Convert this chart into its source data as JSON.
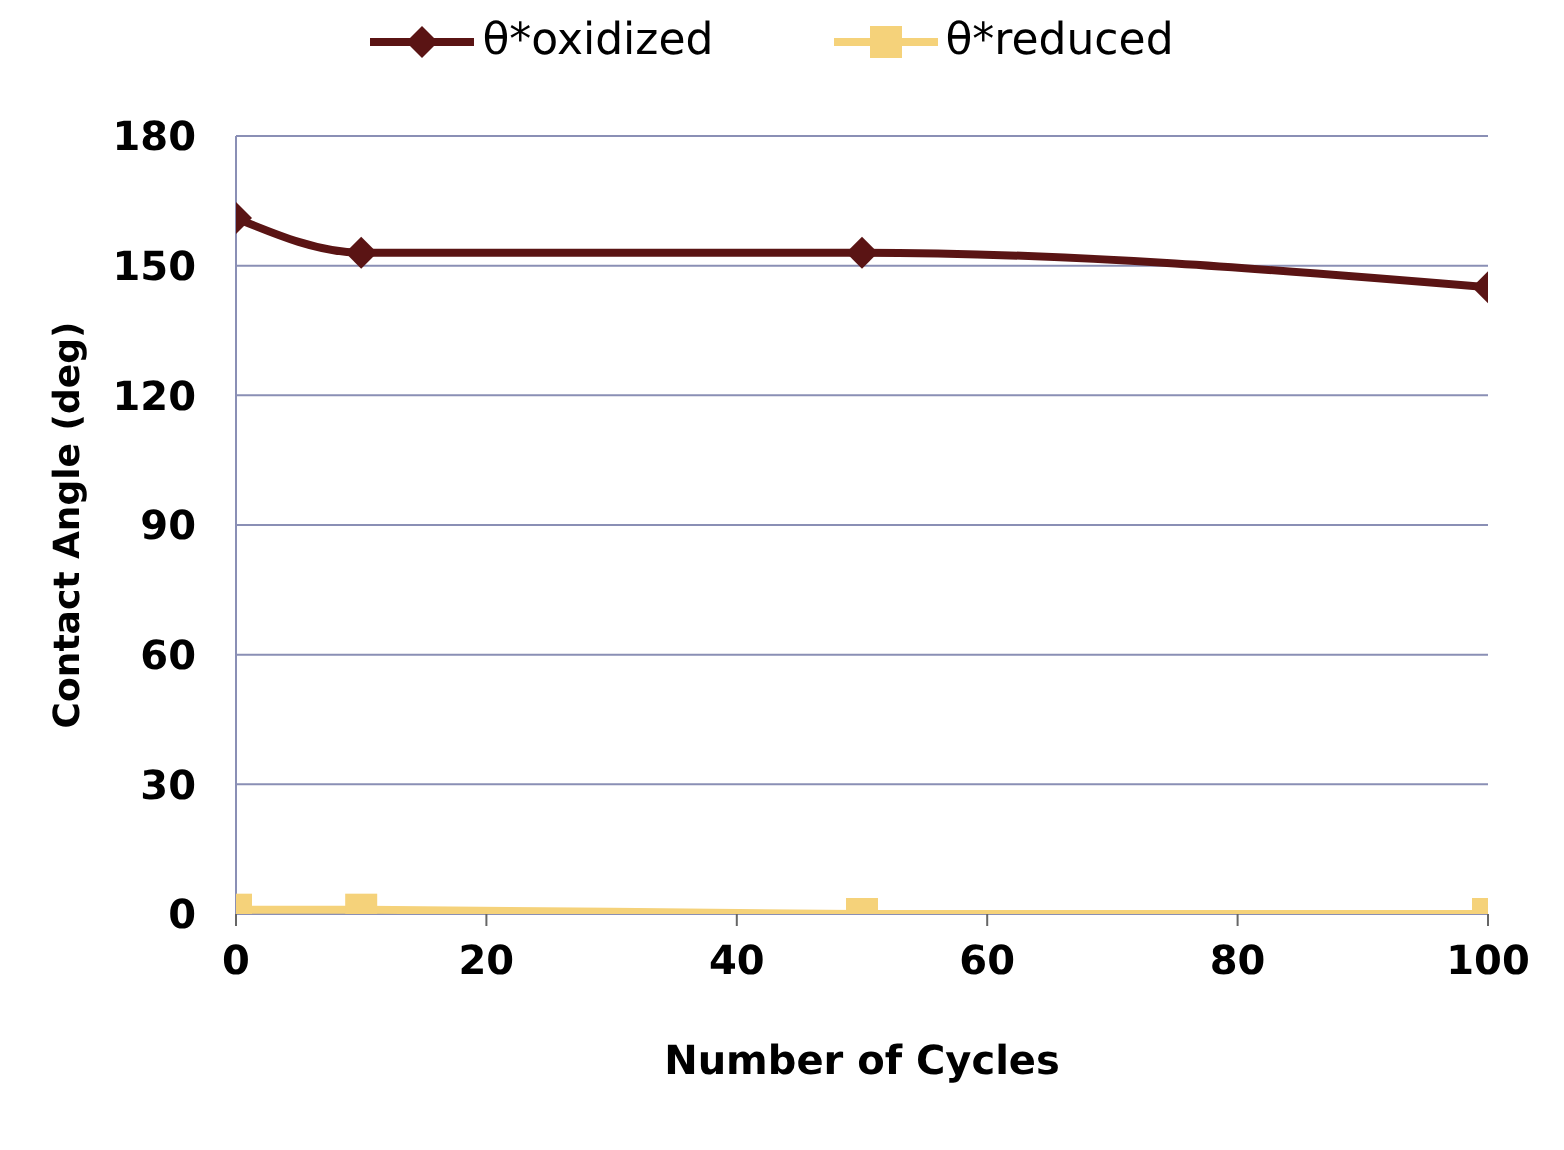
{
  "chart_data": {
    "type": "line",
    "xlabel": "Number of Cycles",
    "ylabel": "Contact Angle (deg)",
    "x": [
      0,
      10,
      50,
      100
    ],
    "series": [
      {
        "name": "θ*oxidized",
        "color": "#5a1414",
        "values": [
          161,
          153,
          153,
          145
        ],
        "marker": "diamond"
      },
      {
        "name": "θ*reduced",
        "color": "#f5d27a",
        "values": [
          1,
          1,
          0,
          0
        ],
        "marker": "square"
      }
    ],
    "xlim": [
      0,
      100
    ],
    "xticks": [
      0,
      20,
      40,
      60,
      80,
      100
    ],
    "ylim": [
      0,
      180
    ],
    "yticks": [
      0,
      30,
      60,
      90,
      120,
      150,
      180
    ],
    "grid": "y",
    "legend": "top",
    "line_style": "solid"
  }
}
